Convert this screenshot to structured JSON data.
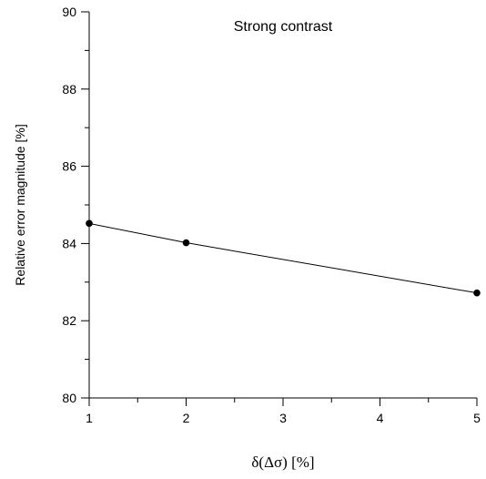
{
  "chart_data": {
    "type": "line",
    "title": "Strong contrast",
    "xlabel": "δ(Δσ)  [%]",
    "ylabel": "Relative error magnitude [%]",
    "x": [
      1,
      2,
      5
    ],
    "series": [
      {
        "values": [
          84.52,
          84.02,
          82.72
        ],
        "color": "#000000"
      }
    ],
    "xlim": [
      1,
      5
    ],
    "ylim": [
      80,
      90
    ],
    "xticks": [
      1,
      2,
      3,
      4,
      5
    ],
    "yticks": [
      80,
      82,
      84,
      86,
      88,
      90
    ],
    "xtick_labels": [
      "1",
      "2",
      "3",
      "4",
      "5"
    ],
    "ytick_labels": [
      "80",
      "82",
      "84",
      "86",
      "88",
      "90"
    ],
    "grid": false,
    "legend": "none"
  }
}
